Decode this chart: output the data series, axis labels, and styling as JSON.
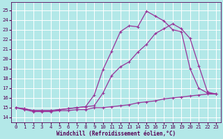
{
  "bg_color": "#b3e8e8",
  "grid_color": "#ffffff",
  "line_color": "#993399",
  "xlabel": "Windchill (Refroidissement éolien,°C)",
  "ylabel_ticks": [
    14,
    15,
    16,
    17,
    18,
    19,
    20,
    21,
    22,
    23,
    24,
    25
  ],
  "xlim": [
    -0.5,
    23.5
  ],
  "ylim": [
    13.5,
    25.8
  ],
  "line1_x": [
    0,
    1,
    2,
    3,
    4,
    5,
    6,
    7,
    8,
    9,
    10,
    11,
    12,
    13,
    14,
    15,
    16,
    17,
    18,
    19,
    20,
    21,
    22,
    23
  ],
  "line1_y": [
    15.0,
    14.8,
    14.6,
    14.6,
    14.6,
    14.7,
    14.7,
    14.8,
    14.8,
    15.0,
    15.0,
    15.1,
    15.2,
    15.3,
    15.5,
    15.6,
    15.7,
    15.9,
    16.0,
    16.1,
    16.2,
    16.3,
    16.4,
    16.4
  ],
  "line2_x": [
    0,
    1,
    2,
    3,
    4,
    5,
    6,
    7,
    8,
    9,
    10,
    11,
    12,
    13,
    14,
    15,
    16,
    17,
    18,
    19,
    20,
    21,
    22,
    23
  ],
  "line2_y": [
    15.0,
    14.9,
    14.7,
    14.7,
    14.7,
    14.8,
    14.9,
    15.0,
    15.1,
    15.2,
    16.5,
    18.3,
    19.2,
    19.7,
    20.7,
    21.5,
    22.6,
    23.1,
    23.6,
    23.1,
    22.1,
    19.3,
    16.6,
    16.4
  ],
  "line3_x": [
    0,
    1,
    2,
    3,
    4,
    5,
    6,
    7,
    8,
    9,
    10,
    11,
    12,
    13,
    14,
    15,
    16,
    17,
    18,
    19,
    20,
    21,
    22,
    23
  ],
  "line3_y": [
    15.0,
    14.9,
    14.7,
    14.7,
    14.7,
    14.8,
    14.9,
    15.0,
    15.1,
    16.3,
    18.9,
    20.8,
    22.8,
    23.4,
    23.3,
    24.9,
    24.4,
    23.9,
    23.0,
    22.8,
    19.0,
    17.0,
    16.5,
    16.4
  ],
  "tick_color": "#550055",
  "label_fontsize": 5.5,
  "tick_fontsize": 5.2,
  "lw": 0.9,
  "ms": 2.8
}
